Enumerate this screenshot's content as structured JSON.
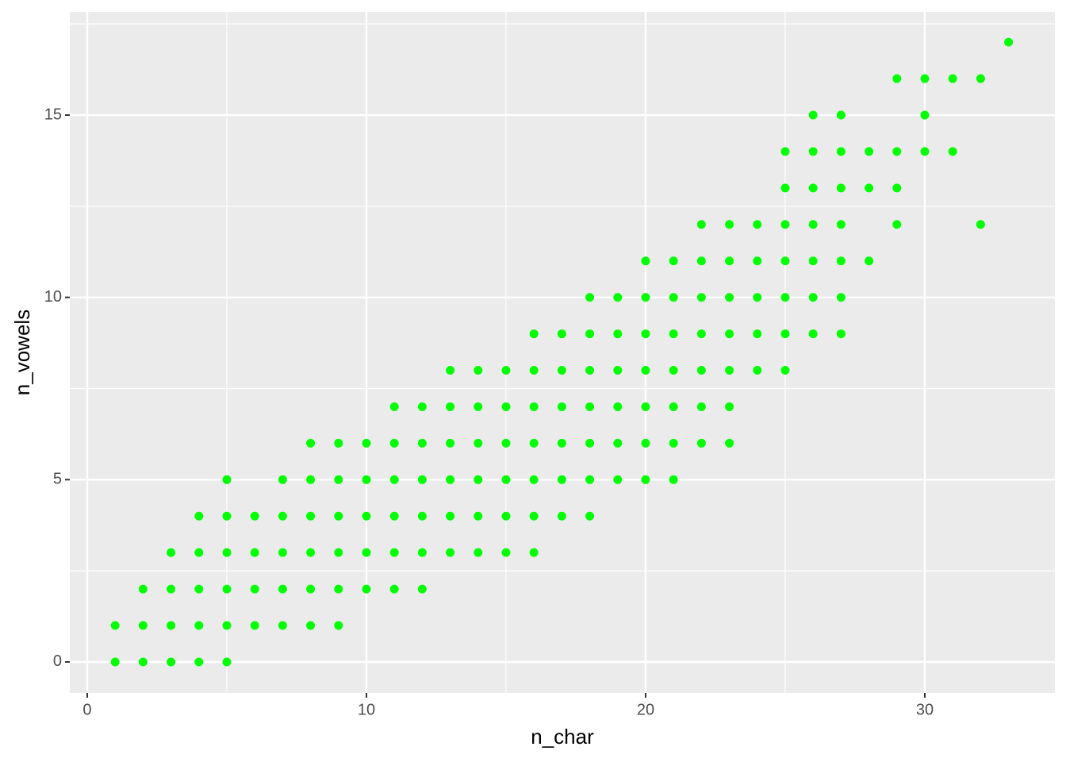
{
  "chart_data": {
    "type": "scatter",
    "xlabel": "n_char",
    "ylabel": "n_vowels",
    "color": "#00ff00",
    "grid": true,
    "xlim": [
      -0.625,
      34.66
    ],
    "ylim": [
      -0.85,
      17.83
    ],
    "xticks": [
      0,
      10,
      20,
      30
    ],
    "yticks": [
      0,
      5,
      10,
      15
    ],
    "series": [
      {
        "x": [
          1,
          1,
          2,
          2,
          2,
          3,
          3,
          3,
          3,
          4,
          4,
          4,
          4,
          4,
          5,
          5,
          5,
          5,
          5,
          5,
          6,
          6,
          6,
          6,
          7,
          7,
          7,
          7,
          7,
          8,
          8,
          8,
          8,
          8,
          8,
          9,
          9,
          9,
          9,
          9,
          9,
          10,
          10,
          10,
          10,
          10,
          11,
          11,
          11,
          11,
          11,
          11,
          12,
          12,
          12,
          12,
          12,
          12,
          13,
          13,
          13,
          13,
          13,
          13,
          14,
          14,
          14,
          14,
          14,
          14,
          15,
          15,
          15,
          15,
          15,
          15,
          16,
          16,
          16,
          16,
          16,
          16,
          16,
          17,
          17,
          17,
          17,
          17,
          17,
          18,
          18,
          18,
          18,
          18,
          18,
          18,
          19,
          19,
          19,
          19,
          19,
          19,
          20,
          20,
          20,
          20,
          20,
          20,
          20,
          21,
          21,
          21,
          21,
          21,
          21,
          21,
          22,
          22,
          22,
          22,
          22,
          22,
          22,
          23,
          23,
          23,
          23,
          23,
          23,
          23,
          24,
          24,
          24,
          24,
          24,
          25,
          25,
          25,
          25,
          25,
          25,
          25,
          26,
          26,
          26,
          26,
          26,
          26,
          26,
          27,
          27,
          27,
          27,
          27,
          27,
          27,
          28,
          28,
          28,
          29,
          29,
          29,
          29,
          30,
          30,
          30,
          31,
          31,
          32,
          32,
          33
        ],
        "values": [
          0,
          1,
          0,
          1,
          2,
          0,
          1,
          2,
          3,
          0,
          1,
          2,
          3,
          4,
          0,
          1,
          2,
          3,
          4,
          5,
          1,
          2,
          3,
          4,
          1,
          2,
          3,
          4,
          5,
          1,
          2,
          3,
          4,
          5,
          6,
          1,
          2,
          3,
          4,
          5,
          6,
          2,
          3,
          4,
          5,
          6,
          2,
          3,
          4,
          5,
          6,
          7,
          2,
          3,
          4,
          5,
          6,
          7,
          3,
          4,
          5,
          6,
          7,
          8,
          3,
          4,
          5,
          6,
          7,
          8,
          3,
          4,
          5,
          6,
          7,
          8,
          3,
          4,
          5,
          6,
          7,
          8,
          9,
          4,
          5,
          6,
          7,
          8,
          9,
          4,
          5,
          6,
          7,
          8,
          9,
          10,
          5,
          6,
          7,
          8,
          9,
          10,
          5,
          6,
          7,
          8,
          9,
          10,
          11,
          5,
          6,
          7,
          8,
          9,
          10,
          11,
          6,
          7,
          8,
          9,
          10,
          11,
          12,
          6,
          7,
          8,
          9,
          10,
          11,
          12,
          8,
          9,
          10,
          11,
          12,
          8,
          9,
          10,
          11,
          12,
          13,
          14,
          9,
          10,
          11,
          12,
          13,
          14,
          15,
          9,
          10,
          11,
          12,
          13,
          14,
          15,
          11,
          13,
          14,
          12,
          13,
          14,
          16,
          14,
          15,
          16,
          14,
          16,
          12,
          16,
          17
        ]
      }
    ]
  }
}
